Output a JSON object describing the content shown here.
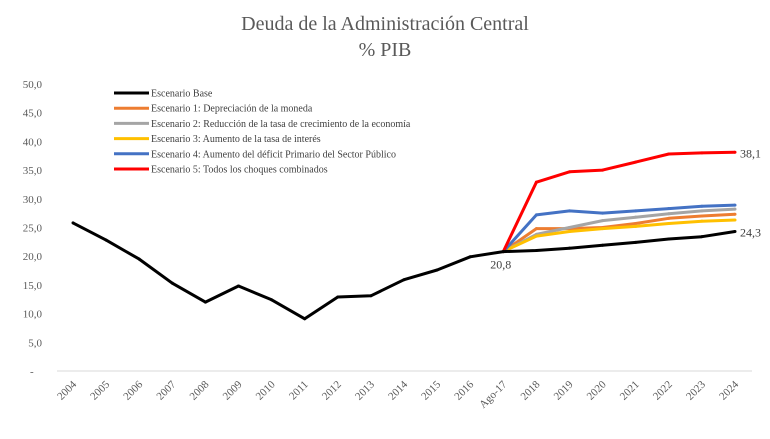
{
  "chart_data": {
    "type": "line",
    "title": "Deuda de la Administración Central",
    "subtitle": "% PIB",
    "xlabel": "",
    "ylabel": "",
    "categories": [
      "2004",
      "2005",
      "2006",
      "2007",
      "2008",
      "2009",
      "2010",
      "2011",
      "2012",
      "2013",
      "2014",
      "2015",
      "2016",
      "Ago-17",
      "2018",
      "2019",
      "2020",
      "2021",
      "2022",
      "2023",
      "2024"
    ],
    "ylim": [
      0,
      50
    ],
    "yticks": [
      "-",
      "5,0",
      "10,0",
      "15,0",
      "20,0",
      "25,0",
      "30,0",
      "35,0",
      "40,0",
      "45,0",
      "50,0"
    ],
    "grid": false,
    "legend": "top-left",
    "series": [
      {
        "name": "Escenario Base",
        "color": "#000000",
        "values": [
          25.8,
          22.8,
          19.5,
          15.3,
          12.0,
          14.8,
          12.4,
          9.1,
          12.9,
          13.1,
          15.9,
          17.6,
          19.9,
          20.8,
          21.0,
          21.4,
          21.9,
          22.4,
          23.0,
          23.4,
          24.3
        ]
      },
      {
        "name": "Escenario 1: Depreciación de la moneda",
        "color": "#ED7D31",
        "values": [
          null,
          null,
          null,
          null,
          null,
          null,
          null,
          null,
          null,
          null,
          null,
          null,
          null,
          20.8,
          24.8,
          24.8,
          25.0,
          25.7,
          26.6,
          27.0,
          27.3
        ]
      },
      {
        "name": "Escenario 2: Reducción de la tasa de crecimiento de la economía",
        "color": "#A5A5A5",
        "values": [
          null,
          null,
          null,
          null,
          null,
          null,
          null,
          null,
          null,
          null,
          null,
          null,
          null,
          20.8,
          23.8,
          25.0,
          26.2,
          26.8,
          27.4,
          27.9,
          28.2
        ]
      },
      {
        "name": "Escenario 3: Aumento de la tasa de interés",
        "color": "#FFC000",
        "values": [
          null,
          null,
          null,
          null,
          null,
          null,
          null,
          null,
          null,
          null,
          null,
          null,
          null,
          20.8,
          23.5,
          24.3,
          24.8,
          25.2,
          25.7,
          26.1,
          26.3
        ]
      },
      {
        "name": "Escenario 4: Aumento del déficit Primario del Sector Público",
        "color": "#4472C4",
        "values": [
          null,
          null,
          null,
          null,
          null,
          null,
          null,
          null,
          null,
          null,
          null,
          null,
          null,
          20.8,
          27.2,
          27.9,
          27.5,
          27.9,
          28.3,
          28.7,
          28.9
        ]
      },
      {
        "name": "Escenario 5: Todos los choques combinados",
        "color": "#FF0000",
        "values": [
          null,
          null,
          null,
          null,
          null,
          null,
          null,
          null,
          null,
          null,
          null,
          null,
          null,
          20.8,
          32.9,
          34.7,
          35.0,
          36.4,
          37.8,
          38.0,
          38.1
        ]
      }
    ],
    "annotations": [
      {
        "text": "20,8",
        "category": "Ago-17",
        "value": 20.8
      },
      {
        "text": "24,3",
        "category": "2024",
        "value": 24.3
      },
      {
        "text": "38,1",
        "category": "2024",
        "value": 38.1
      }
    ]
  }
}
